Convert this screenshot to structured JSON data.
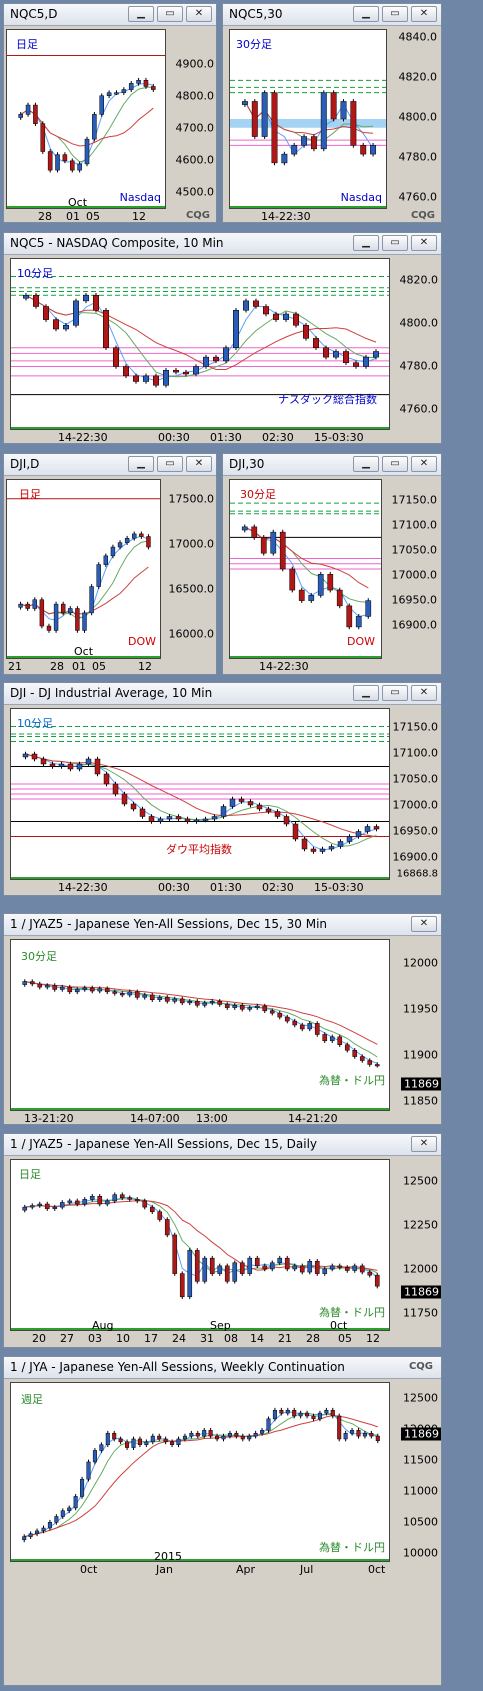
{
  "colors": {
    "up": "#2a5db8",
    "down": "#b01818",
    "ma_fast": "#5aa0ff",
    "ma_mid": "#66aa66",
    "ma_slow": "#d04040",
    "pink": "#ee66cc",
    "green": "#10a040",
    "session_green": "#2ca02c"
  },
  "window_buttons": {
    "minimize": "▁",
    "restore": "▭",
    "close": "✕"
  },
  "panels": [
    {
      "id": "nq_daily",
      "title": "NQC5,D",
      "label": "日足",
      "label_color": "#0000cc",
      "footer_label": "Nasdaq",
      "footer_color": "#0000cc",
      "brand": "CQG",
      "y_ticks": [
        "4900.0",
        "4800.0",
        "4700.0",
        "4600.0",
        "4500.0"
      ],
      "x_ticks": [
        "28",
        "01",
        "05",
        "12"
      ],
      "x_sub": "Oct",
      "chart_data": {
        "type": "candlestick",
        "y_range": [
          4450,
          4960
        ],
        "closes": [
          4720,
          4750,
          4690,
          4600,
          4540,
          4590,
          4570,
          4540,
          4560,
          4640,
          4720,
          4780,
          4790,
          4790,
          4800,
          4820,
          4830,
          4810,
          4800
        ],
        "resistance": 4910
      }
    },
    {
      "id": "nq_30",
      "title": "NQC5,30",
      "label": "30分足",
      "label_color": "#0000cc",
      "footer_label": "Nasdaq",
      "footer_color": "#0000cc",
      "brand": "CQG",
      "y_ticks": [
        "4840.0",
        "4820.0",
        "4800.0",
        "4780.0",
        "4760.0"
      ],
      "x_ticks": [
        "14-22:30"
      ],
      "chart_data": {
        "type": "candlestick",
        "y_range": [
          4755,
          4845
        ],
        "closes": [
          4810,
          4790,
          4815,
          4775,
          4780,
          4785,
          4790,
          4783,
          4815,
          4800,
          4810,
          4785,
          4780,
          4785
        ],
        "green_levels": [
          4822,
          4818,
          4815
        ],
        "pink_levels": [
          4788,
          4785
        ],
        "zone": [
          4795,
          4800
        ]
      }
    },
    {
      "id": "nq_10",
      "title": "NQC5 - NASDAQ Composite, 10 Min",
      "label": "10分足",
      "label_color": "#0000cc",
      "footer_label": "ナスダック総合指数",
      "footer_color": "#0000cc",
      "brand": "",
      "y_ticks": [
        "4820.0",
        "4800.0",
        "4780.0",
        "4760.0"
      ],
      "x_ticks": [
        "14-22:30",
        "00:30",
        "01:30",
        "02:30",
        "15-03:30"
      ],
      "chart_data": {
        "type": "candlestick",
        "y_range": [
          4752,
          4832
        ],
        "closes": [
          4818,
          4812,
          4805,
          4800,
          4802,
          4815,
          4818,
          4810,
          4790,
          4780,
          4775,
          4772,
          4775,
          4770,
          4778,
          4777,
          4776,
          4780,
          4785,
          4783,
          4790,
          4810,
          4815,
          4812,
          4808,
          4805,
          4808,
          4802,
          4795,
          4790,
          4785,
          4788,
          4782,
          4780,
          4785,
          4788
        ],
        "green_levels": [
          4828,
          4822,
          4820,
          4818
        ],
        "pink_levels": [
          4790,
          4787,
          4783,
          4780,
          4775
        ],
        "black_level": 4765
      }
    },
    {
      "id": "dji_daily",
      "title": "DJI,D",
      "label": "日足",
      "label_color": "#cc0000",
      "footer_label": "DOW",
      "footer_color": "#cc0000",
      "brand": "",
      "y_ticks": [
        "17500.0",
        "17000.0",
        "16500.0",
        "16000.0"
      ],
      "x_ticks": [
        "21",
        "28",
        "01",
        "05",
        "12"
      ],
      "x_sub": "Oct",
      "chart_data": {
        "type": "candlestick",
        "y_range": [
          15850,
          17650
        ],
        "closes": [
          16350,
          16300,
          16400,
          16100,
          16050,
          16350,
          16250,
          16300,
          16050,
          16250,
          16550,
          16800,
          16900,
          17000,
          17050,
          17100,
          17150,
          17120,
          17000
        ],
        "resistance": 17550
      }
    },
    {
      "id": "dji_30",
      "title": "DJI,30",
      "label": "30分足",
      "label_color": "#cc0000",
      "footer_label": "DOW",
      "footer_color": "#cc0000",
      "brand": "",
      "y_ticks": [
        "17150.0",
        "17100.0",
        "17050.0",
        "17000.0",
        "16950.0",
        "16900.0"
      ],
      "x_ticks": [
        "14-22:30"
      ],
      "chart_data": {
        "type": "candlestick",
        "y_range": [
          16870,
          17170
        ],
        "closes": [
          17100,
          17080,
          17050,
          17090,
          17020,
          16980,
          16960,
          16970,
          17010,
          16980,
          16950,
          16910,
          16930,
          16960
        ],
        "green_levels": [
          17145,
          17130,
          17125
        ],
        "pink_levels": [
          17040,
          17030,
          17020
        ],
        "black_level": 17080
      }
    },
    {
      "id": "dji_10",
      "title": "DJI - DJ Industrial Average, 10 Min",
      "label": "10分足",
      "label_color": "#0066cc",
      "footer_label": "ダウ平均指数",
      "footer_color": "#cc0000",
      "brand": "",
      "y_ticks": [
        "17150.0",
        "17100.0",
        "17050.0",
        "17000.0",
        "16950.0",
        "16900.0"
      ],
      "x_ticks": [
        "14-22:30",
        "00:30",
        "01:30",
        "02:30",
        "15-03:30"
      ],
      "bottom_tag": "16868.8",
      "chart_data": {
        "type": "candlestick",
        "y_range": [
          16870,
          17170
        ],
        "closes": [
          17100,
          17090,
          17080,
          17075,
          17080,
          17070,
          17080,
          17090,
          17060,
          17040,
          17020,
          17000,
          16990,
          16975,
          16965,
          16970,
          16975,
          16970,
          16965,
          16968,
          16970,
          16975,
          16995,
          17010,
          17005,
          16998,
          16990,
          16985,
          16975,
          16960,
          16930,
          16910,
          16905,
          16910,
          16915,
          16925,
          16935,
          16945,
          16955,
          16950
        ],
        "green_levels": [
          17155,
          17140,
          17135,
          17125
        ],
        "pink_levels": [
          17040,
          17030,
          17020,
          17010
        ],
        "black_levels": [
          17075,
          16965
        ],
        "red_level": 16935
      }
    },
    {
      "id": "jy_30",
      "title": "1 / JYAZ5 - Japanese Yen-All Sessions, Dec 15, 30 Min",
      "label": "30分足",
      "label_color": "#2a8a2a",
      "footer_label": "為替・ドル円",
      "footer_color": "#2a8a2a",
      "brand": "",
      "y_ticks": [
        "12000",
        "11950",
        "11900",
        "11850"
      ],
      "x_ticks": [
        "13-21:20",
        "14-07:00",
        "13:00",
        "14-21:20"
      ],
      "price": "11869",
      "chart_data": {
        "type": "candlestick",
        "y_range": [
          11825,
          12015
        ],
        "closes": [
          11975,
          11972,
          11968,
          11970,
          11965,
          11968,
          11962,
          11965,
          11967,
          11963,
          11966,
          11962,
          11960,
          11958,
          11962,
          11955,
          11958,
          11952,
          11955,
          11950,
          11953,
          11948,
          11950,
          11945,
          11948,
          11950,
          11946,
          11942,
          11945,
          11940,
          11942,
          11944,
          11938,
          11935,
          11930,
          11925,
          11920,
          11915,
          11922,
          11908,
          11900,
          11905,
          11895,
          11888,
          11880,
          11875,
          11870,
          11869
        ]
      }
    },
    {
      "id": "jy_daily",
      "title": "1 / JYAZ5 - Japanese Yen-All Sessions, Dec 15, Daily",
      "label": "日足",
      "label_color": "#2a8a2a",
      "footer_label": "為替・ドル円",
      "footer_color": "#2a8a2a",
      "brand": "",
      "y_ticks": [
        "12500",
        "12250",
        "12000",
        "11750"
      ],
      "x_ticks": [
        "20",
        "27",
        "03",
        "10",
        "17",
        "24",
        "31",
        "08",
        "14",
        "21",
        "28",
        "05",
        "12"
      ],
      "x_sub_a": "Aug",
      "x_sub_b": "Sep",
      "x_sub_c": "0ct",
      "price": "11869",
      "chart_data": {
        "type": "candlestick",
        "y_range": [
          11650,
          12620
        ],
        "closes": [
          12380,
          12390,
          12400,
          12370,
          12380,
          12410,
          12420,
          12400,
          12430,
          12450,
          12400,
          12420,
          12460,
          12440,
          12430,
          12420,
          12380,
          12350,
          12300,
          12200,
          11950,
          11800,
          12100,
          11900,
          12050,
          11950,
          12000,
          11900,
          12020,
          11950,
          12050,
          12000,
          11980,
          12020,
          12050,
          11980,
          12000,
          11960,
          12030,
          11950,
          11980,
          12000,
          11990,
          11970,
          12000,
          11960,
          11940,
          11869
        ]
      }
    },
    {
      "id": "jy_weekly",
      "title": "1 / JYA - Japanese Yen-All Sessions, Weekly Continuation",
      "label": "週足",
      "label_color": "#2a8a2a",
      "footer_label": "為替・ドル円",
      "footer_color": "#2a8a2a",
      "brand": "CQG",
      "y_ticks": [
        "12500",
        "12000",
        "11500",
        "11000",
        "10500",
        "10000"
      ],
      "x_ticks": [
        "0ct",
        "Jan",
        "Apr",
        "Jul",
        "0ct"
      ],
      "x_sub": "2015",
      "price": "11869",
      "chart_data": {
        "type": "candlestick",
        "y_range": [
          9950,
          12700
        ],
        "closes": [
          10200,
          10250,
          10300,
          10350,
          10450,
          10550,
          10650,
          10700,
          10900,
          11200,
          11500,
          11700,
          11800,
          12000,
          11900,
          11850,
          11750,
          11900,
          11800,
          11850,
          11950,
          11900,
          11850,
          11800,
          11900,
          11950,
          12000,
          11950,
          12050,
          11950,
          11900,
          11950,
          12000,
          11950,
          11900,
          11950,
          12000,
          12050,
          12250,
          12400,
          12350,
          12400,
          12300,
          12350,
          12300,
          12250,
          12350,
          12400,
          12300,
          11900,
          12000,
          12050,
          11950,
          12000,
          11950,
          11869
        ]
      }
    }
  ]
}
